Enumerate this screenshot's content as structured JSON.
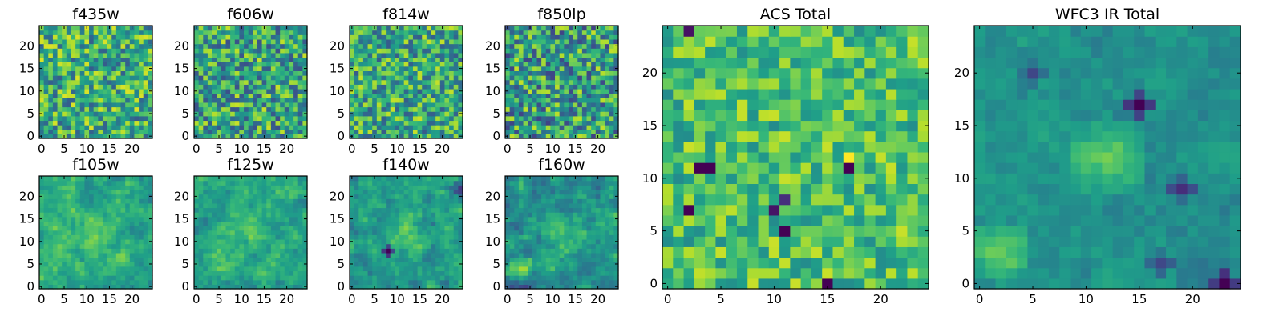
{
  "figure": {
    "description_title": "Filter cutout panels"
  },
  "chart_data": [
    {
      "type": "heatmap",
      "title": "f435w",
      "x_ticks": [
        "0",
        "5",
        "10",
        "15",
        "20"
      ],
      "y_ticks": [
        "0",
        "5",
        "10",
        "15",
        "20"
      ],
      "xlim": [
        0,
        24
      ],
      "ylim": [
        0,
        24
      ],
      "grid_size": 24,
      "seed": 11,
      "mean": 0.62,
      "noise": 0.33,
      "smooth": 0,
      "features": []
    },
    {
      "type": "heatmap",
      "title": "f606w",
      "x_ticks": [
        "0",
        "5",
        "10",
        "15",
        "20"
      ],
      "y_ticks": [
        "0",
        "5",
        "10",
        "15",
        "20"
      ],
      "xlim": [
        0,
        24
      ],
      "ylim": [
        0,
        24
      ],
      "grid_size": 24,
      "seed": 23,
      "mean": 0.58,
      "noise": 0.34,
      "smooth": 0,
      "features": []
    },
    {
      "type": "heatmap",
      "title": "f814w",
      "x_ticks": [
        "0",
        "5",
        "10",
        "15",
        "20"
      ],
      "y_ticks": [
        "0",
        "5",
        "10",
        "15",
        "20"
      ],
      "xlim": [
        0,
        24
      ],
      "ylim": [
        0,
        24
      ],
      "grid_size": 24,
      "seed": 37,
      "mean": 0.6,
      "noise": 0.32,
      "smooth": 0,
      "features": []
    },
    {
      "type": "heatmap",
      "title": "f850lp",
      "x_ticks": [
        "0",
        "5",
        "10",
        "15",
        "20"
      ],
      "y_ticks": [
        "0",
        "5",
        "10",
        "15",
        "20"
      ],
      "xlim": [
        0,
        24
      ],
      "ylim": [
        0,
        24
      ],
      "grid_size": 24,
      "seed": 41,
      "mean": 0.55,
      "noise": 0.36,
      "smooth": 0,
      "features": []
    },
    {
      "type": "heatmap",
      "title": "f105w",
      "x_ticks": [
        "0",
        "5",
        "10",
        "15",
        "20"
      ],
      "y_ticks": [
        "0",
        "5",
        "10",
        "15",
        "20"
      ],
      "xlim": [
        0,
        24
      ],
      "ylim": [
        0,
        24
      ],
      "grid_size": 24,
      "seed": 53,
      "mean": 0.62,
      "noise": 0.28,
      "smooth": 1,
      "features": [
        {
          "x": 12,
          "y": 11,
          "r": 5,
          "a": 0.15
        }
      ]
    },
    {
      "type": "heatmap",
      "title": "f125w",
      "x_ticks": [
        "0",
        "5",
        "10",
        "15",
        "20"
      ],
      "y_ticks": [
        "0",
        "5",
        "10",
        "15",
        "20"
      ],
      "xlim": [
        0,
        24
      ],
      "ylim": [
        0,
        24
      ],
      "grid_size": 24,
      "seed": 67,
      "mean": 0.6,
      "noise": 0.3,
      "smooth": 1,
      "features": [
        {
          "x": 10,
          "y": 13,
          "r": 6,
          "a": 0.15
        }
      ]
    },
    {
      "type": "heatmap",
      "title": "f140w",
      "x_ticks": [
        "0",
        "5",
        "10",
        "15",
        "20"
      ],
      "y_ticks": [
        "0",
        "5",
        "10",
        "15",
        "20"
      ],
      "xlim": [
        0,
        24
      ],
      "ylim": [
        0,
        24
      ],
      "grid_size": 24,
      "seed": 79,
      "mean": 0.55,
      "noise": 0.3,
      "smooth": 1,
      "features": [
        {
          "x": 12,
          "y": 12,
          "r": 6,
          "a": 0.2
        },
        {
          "x": 8,
          "y": 8,
          "r": 1,
          "a": -0.7
        },
        {
          "x": 24,
          "y": 22,
          "r": 2,
          "a": -0.4
        }
      ]
    },
    {
      "type": "heatmap",
      "title": "f160w",
      "x_ticks": [
        "0",
        "5",
        "10",
        "15",
        "20"
      ],
      "y_ticks": [
        "0",
        "5",
        "10",
        "15",
        "20"
      ],
      "xlim": [
        0,
        24
      ],
      "ylim": [
        0,
        24
      ],
      "grid_size": 24,
      "seed": 97,
      "mean": 0.5,
      "noise": 0.34,
      "smooth": 1,
      "features": [
        {
          "x": 3,
          "y": 4,
          "r": 3,
          "a": 0.3
        },
        {
          "x": 12,
          "y": 12,
          "r": 5,
          "a": 0.2
        }
      ]
    },
    {
      "type": "heatmap",
      "title": "ACS Total",
      "x_ticks": [
        "0",
        "5",
        "10",
        "15",
        "20"
      ],
      "y_ticks": [
        "0",
        "5",
        "10",
        "15",
        "20"
      ],
      "xlim": [
        0,
        24
      ],
      "ylim": [
        0,
        24
      ],
      "grid_size": 24,
      "seed": 113,
      "mean": 0.7,
      "noise": 0.22,
      "smooth": 0,
      "features": [
        {
          "x": 15,
          "y": 0,
          "r": 0,
          "a": -0.8
        },
        {
          "x": 2,
          "y": 24,
          "r": 0,
          "a": -0.8
        },
        {
          "x": 3,
          "y": 11,
          "r": 0,
          "a": -0.8
        },
        {
          "x": 4,
          "y": 11,
          "r": 0,
          "a": -0.8
        },
        {
          "x": 17,
          "y": 11,
          "r": 0,
          "a": -0.8
        },
        {
          "x": 2,
          "y": 7,
          "r": 0,
          "a": -0.8
        },
        {
          "x": 10,
          "y": 7,
          "r": 0,
          "a": -0.8
        },
        {
          "x": 11,
          "y": 5,
          "r": 0,
          "a": -0.8
        },
        {
          "x": 11,
          "y": 8,
          "r": 0,
          "a": -0.7
        },
        {
          "x": 17,
          "y": 12,
          "r": 0,
          "a": 0.3
        }
      ]
    },
    {
      "type": "heatmap",
      "title": "WFC3 IR Total",
      "x_ticks": [
        "0",
        "5",
        "10",
        "15",
        "20"
      ],
      "y_ticks": [
        "0",
        "5",
        "10",
        "15",
        "20"
      ],
      "xlim": [
        0,
        24
      ],
      "ylim": [
        0,
        24
      ],
      "grid_size": 24,
      "seed": 131,
      "mean": 0.5,
      "noise": 0.14,
      "smooth": 2,
      "features": [
        {
          "x": 12,
          "y": 12,
          "r": 4,
          "a": 0.3
        },
        {
          "x": 2,
          "y": 3,
          "r": 3,
          "a": 0.3
        },
        {
          "x": 15,
          "y": 17,
          "r": 1,
          "a": -0.6
        },
        {
          "x": 23,
          "y": 0,
          "r": 1,
          "a": -0.6
        },
        {
          "x": 19,
          "y": 9,
          "r": 1,
          "a": -0.4
        },
        {
          "x": 5,
          "y": 20,
          "r": 1,
          "a": -0.3
        },
        {
          "x": 17,
          "y": 2,
          "r": 1,
          "a": -0.3
        }
      ]
    }
  ]
}
